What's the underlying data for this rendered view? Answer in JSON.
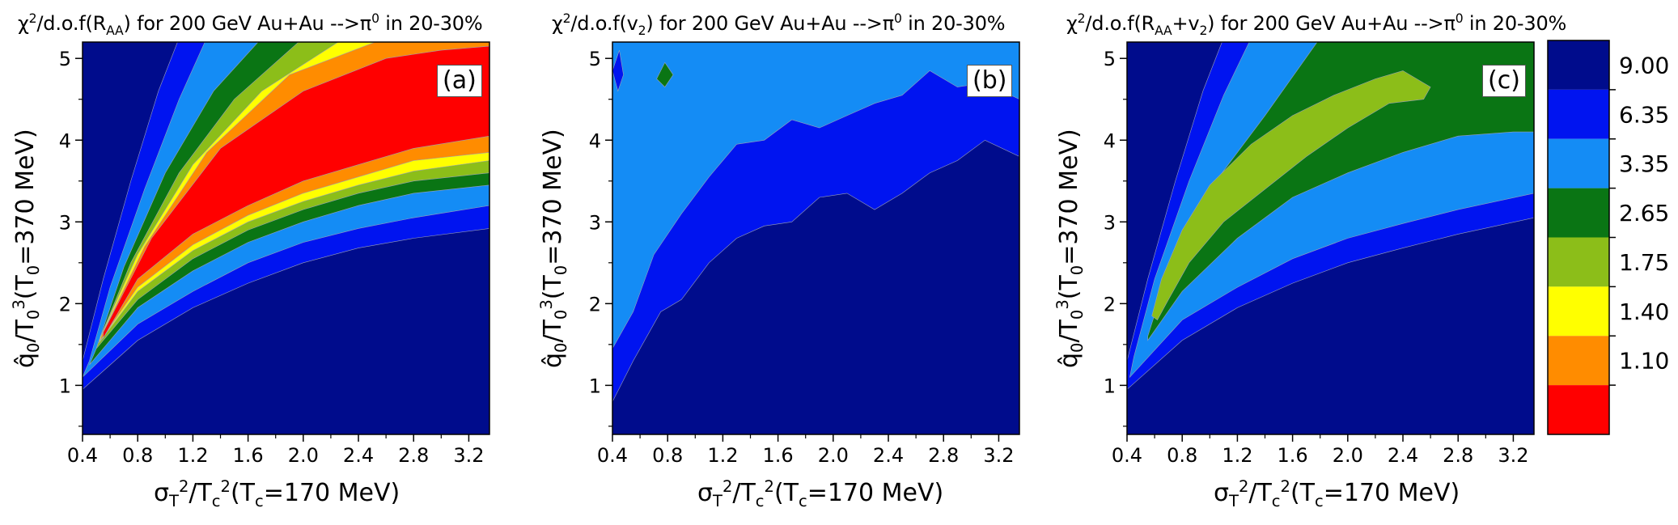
{
  "chart_data": [
    {
      "type": "heatmap",
      "panel_label": "(a)",
      "title": "χ²/d.o.f(R_AA) for 200 GeV Au+Au -->π⁰ in 20-30%",
      "title_parts": {
        "a": "χ",
        "b": "2",
        "c": "/d.o.f(R",
        "d": "AA",
        "e": ") for 200 GeV Au+Au -->π",
        "f": "0",
        "g": " in 20-30%"
      },
      "xlabel": "σ_T²/T_c²(T_c=170 MeV)",
      "ylabel": "q̂_0/T_0³(T_0=370 MeV)",
      "xlim": [
        0.4,
        3.35
      ],
      "ylim": [
        0.4,
        5.2
      ],
      "x_ticks": [
        "0.4",
        "0.8",
        "1.2",
        "1.6",
        "2.0",
        "2.4",
        "2.8",
        "3.2"
      ],
      "y_ticks": [
        "1",
        "2",
        "3",
        "4",
        "5"
      ],
      "contours": {
        "x": [
          0.5,
          0.8,
          1.2,
          1.6,
          2.0,
          2.4,
          2.8,
          3.35
        ],
        "levels": [
          {
            "band": "1.10-1.40",
            "lower": [
              1.55,
              2.0,
              2.5,
              2.9,
              3.2,
              3.45,
              3.65,
              4.0
            ],
            "upper": [
              2.0,
              2.8,
              3.5,
              4.1,
              4.6,
              5.0,
              5.2,
              5.2
            ]
          },
          {
            "band": "<9.00",
            "lower": [
              1.2,
              1.6,
              2.0,
              2.35,
              2.6,
              2.75,
              2.85,
              3.0
            ],
            "upper": [
              2.6,
              4.2,
              5.2,
              5.2,
              5.2,
              5.2,
              5.2,
              5.2
            ]
          }
        ]
      }
    },
    {
      "type": "heatmap",
      "panel_label": "(b)",
      "title": "χ²/d.o.f(v₂) for 200 GeV Au+Au -->π⁰ in 20-30%",
      "title_parts": {
        "a": "χ",
        "b": "2",
        "c": "/d.o.f(v",
        "d": "2",
        "e": ") for 200 GeV Au+Au -->π",
        "f": "0",
        "g": " in 20-30%"
      },
      "xlabel": "σ_T²/T_c²(T_c=170 MeV)",
      "ylabel": "q̂_0/T_0³(T_0=370 MeV)",
      "xlim": [
        0.4,
        3.35
      ],
      "ylim": [
        0.4,
        5.2
      ],
      "x_ticks": [
        "0.4",
        "0.8",
        "1.2",
        "1.6",
        "2.0",
        "2.4",
        "2.8",
        "3.2"
      ],
      "y_ticks": [
        "1",
        "2",
        "3",
        "4",
        "5"
      ],
      "contours": {
        "x": [
          0.4,
          0.8,
          1.2,
          1.6,
          2.0,
          2.4,
          2.8,
          3.35
        ],
        "levels": [
          {
            "band": "3.35-6.35",
            "upper": [
              1.5,
              2.8,
              3.8,
              4.1,
              4.3,
              4.5,
              4.7,
              4.6
            ]
          },
          {
            "band": "6.35-9.00",
            "upper": [
              0.85,
              1.9,
              2.7,
              3.05,
              3.35,
              3.3,
              3.7,
              3.8
            ]
          }
        ]
      }
    },
    {
      "type": "heatmap",
      "panel_label": "(c)",
      "title": "χ²/d.o.f(R_AA+v₂) for 200 GeV Au+Au -->π⁰ in 20-30%",
      "title_parts": {
        "a": "χ",
        "b": "2",
        "c": "/d.o.f(R",
        "d": "AA",
        "e": "+v",
        "d2": "2",
        "e2": ") for 200 GeV Au+Au -->π",
        "f": "0",
        "g": " in 20-30%"
      },
      "xlabel": "σ_T²/T_c²(T_c=170 MeV)",
      "ylabel": "q̂_0/T_0³(T_0=370 MeV)",
      "xlim": [
        0.4,
        3.35
      ],
      "ylim": [
        0.4,
        5.2
      ],
      "x_ticks": [
        "0.4",
        "0.8",
        "1.2",
        "1.6",
        "2.0",
        "2.4",
        "2.8",
        "3.2"
      ],
      "y_ticks": [
        "1",
        "2",
        "3",
        "4",
        "5"
      ]
    }
  ],
  "colorbar": {
    "boundaries": [
      "9.00",
      "6.35",
      "3.35",
      "2.65",
      "1.75",
      "1.40",
      "1.10"
    ],
    "colors": [
      "#000c8c",
      "#0014f0",
      "#148cf5",
      "#0a7514",
      "#8cbe19",
      "#ffff00",
      "#ff8c00",
      "#ff0000"
    ]
  }
}
